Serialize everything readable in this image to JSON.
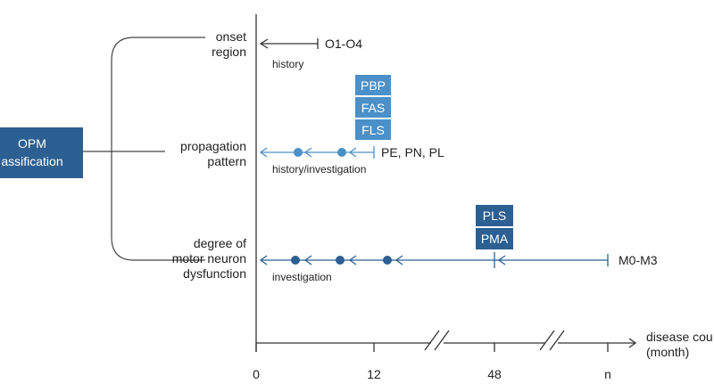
{
  "classification": {
    "line1": "OPM",
    "line2": "assification"
  },
  "rows": {
    "onset": {
      "label_line1": "onset",
      "label_line2": "region",
      "range": "O1-O4",
      "method": "history"
    },
    "propagation": {
      "label_line1": "propagation",
      "label_line2": "pattern",
      "range": "PE, PN, PL",
      "method": "history/investigation",
      "boxes": [
        "PBP",
        "FAS",
        "FLS"
      ]
    },
    "motor": {
      "label_line1": "degree of",
      "label_line2": "motor neuron",
      "label_line3": "dysfunction",
      "range": "M0-M3",
      "method": "investigation",
      "boxes": [
        "PLS",
        "PMA"
      ]
    }
  },
  "axis": {
    "ticks": [
      "0",
      "12",
      "48",
      "n"
    ],
    "label_line1": "disease cou",
    "label_line2": "(month)"
  },
  "colors": {
    "dark_blue": "#2c5f92",
    "light_blue": "#4b90c8",
    "line_gray": "#333333"
  }
}
